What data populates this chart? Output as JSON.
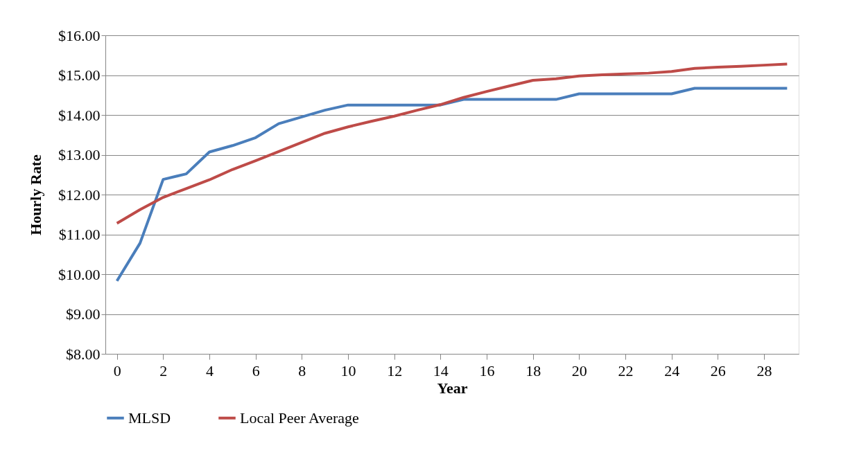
{
  "chart_data": {
    "type": "line",
    "xlabel": "Year",
    "ylabel": "Hourly Rate",
    "x": [
      0,
      1,
      2,
      3,
      4,
      5,
      6,
      7,
      8,
      9,
      10,
      11,
      12,
      13,
      14,
      15,
      16,
      17,
      18,
      19,
      20,
      21,
      22,
      23,
      24,
      25,
      26,
      27,
      28,
      29
    ],
    "xlim": [
      -0.5,
      29.5
    ],
    "xticks": [
      0,
      2,
      4,
      6,
      8,
      10,
      12,
      14,
      16,
      18,
      20,
      22,
      24,
      26,
      28
    ],
    "series": [
      {
        "name": "MLSD",
        "color": "#4a7ebb",
        "values": [
          9.83,
          10.78,
          12.38,
          12.52,
          13.07,
          13.23,
          13.43,
          13.78,
          13.95,
          14.12,
          14.25,
          14.25,
          14.25,
          14.25,
          14.25,
          14.39,
          14.39,
          14.39,
          14.39,
          14.39,
          14.53,
          14.53,
          14.53,
          14.53,
          14.53,
          14.67,
          14.67,
          14.67,
          14.67,
          14.67
        ]
      },
      {
        "name": "Local Peer Average",
        "color": "#be4b48",
        "values": [
          11.28,
          11.62,
          11.93,
          12.15,
          12.37,
          12.63,
          12.85,
          13.08,
          13.31,
          13.54,
          13.7,
          13.84,
          13.97,
          14.12,
          14.26,
          14.44,
          14.59,
          14.73,
          14.87,
          14.91,
          14.98,
          15.01,
          15.03,
          15.05,
          15.09,
          15.17,
          15.2,
          15.22,
          15.25,
          15.28
        ]
      }
    ],
    "ylim": [
      8,
      16
    ],
    "yticks": [
      {
        "value": 8,
        "label": "$8.00"
      },
      {
        "value": 9,
        "label": "$9.00"
      },
      {
        "value": 10,
        "label": "$10.00"
      },
      {
        "value": 11,
        "label": "$11.00"
      },
      {
        "value": 12,
        "label": "$12.00"
      },
      {
        "value": 13,
        "label": "$13.00"
      },
      {
        "value": 14,
        "label": "$14.00"
      },
      {
        "value": 15,
        "label": "$15.00"
      },
      {
        "value": 16,
        "label": "$16.00"
      }
    ],
    "grid": "y",
    "legend": "bottom",
    "marker": "none",
    "line_style": "solid"
  }
}
